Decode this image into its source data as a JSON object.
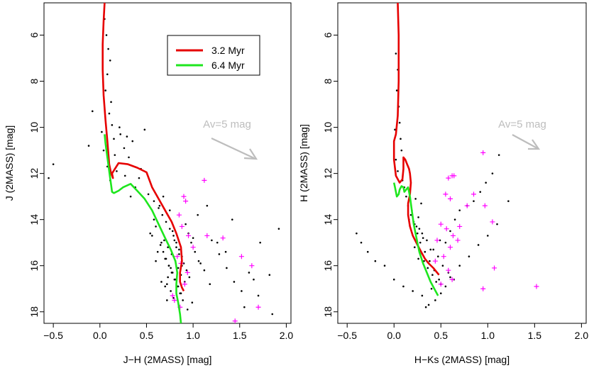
{
  "chart_data": [
    {
      "type": "scatter",
      "xlabel": "J−H (2MASS) [mag]",
      "ylabel": "J (2MASS) [mag]",
      "xlim": [
        -0.6,
        2.05
      ],
      "ylim": [
        18.5,
        4.6
      ],
      "y_inverted": true,
      "xticks": [
        -0.5,
        0.0,
        0.5,
        1.0,
        1.5,
        2.0
      ],
      "xtick_labels": [
        "−0.5",
        "0.0",
        "0.5",
        "1.0",
        "1.5",
        "2.0"
      ],
      "yticks": [
        6,
        8,
        10,
        12,
        14,
        16,
        18
      ],
      "ytick_labels": [
        "6",
        "8",
        "10",
        "12",
        "14",
        "16",
        "18"
      ],
      "legend": {
        "placement": "top-center",
        "entries": [
          {
            "label": "3.2 Myr",
            "color": "#e60000"
          },
          {
            "label": "6.4 Myr",
            "color": "#1ee61e"
          }
        ]
      },
      "annotation": {
        "text": "Av=5 mag",
        "color": "#bdbdbd",
        "at": [
          1.55,
          9.85
        ],
        "arrow_from": [
          1.35,
          10.35
        ],
        "arrow_to": [
          1.75,
          11.3
        ]
      },
      "series": [
        {
          "name": "3.2 Myr",
          "kind": "line",
          "color": "#e60000",
          "x": [
            0.05,
            0.04,
            0.03,
            0.03,
            0.04,
            0.06,
            0.08,
            0.09,
            0.1,
            0.12,
            0.14,
            0.13,
            0.2,
            0.3,
            0.4,
            0.5,
            0.56,
            0.63,
            0.7,
            0.77,
            0.82,
            0.87,
            0.88,
            0.86,
            0.86,
            0.88,
            0.9
          ],
          "y": [
            4.6,
            5.4,
            6.4,
            7.5,
            8.6,
            9.7,
            10.6,
            11.1,
            11.6,
            12.0,
            12.2,
            12.0,
            11.55,
            11.6,
            11.75,
            11.95,
            12.6,
            13.1,
            13.6,
            14.1,
            14.6,
            15.2,
            15.8,
            16.3,
            16.7,
            16.95,
            17.1
          ]
        },
        {
          "name": "6.4 Myr",
          "kind": "line",
          "color": "#1ee61e",
          "x": [
            0.05,
            0.06,
            0.07,
            0.08,
            0.09,
            0.1,
            0.11,
            0.12,
            0.13,
            0.15,
            0.2,
            0.25,
            0.33,
            0.4,
            0.48,
            0.56,
            0.63,
            0.7,
            0.76,
            0.81,
            0.83,
            0.82,
            0.82,
            0.84,
            0.86,
            0.87
          ],
          "y": [
            10.3,
            10.7,
            11.0,
            11.3,
            11.6,
            11.9,
            12.2,
            12.5,
            12.8,
            12.85,
            12.75,
            12.6,
            12.45,
            12.75,
            13.1,
            13.6,
            14.2,
            14.8,
            15.3,
            15.8,
            16.3,
            16.8,
            17.2,
            17.6,
            18.1,
            18.5
          ]
        },
        {
          "name": "",
          "kind": "points",
          "marker": "dot",
          "color": "#000000",
          "x": [
            0.05,
            0.07,
            0.09,
            0.11,
            0.08,
            0.06,
            0.12,
            0.1,
            0.13,
            0.15,
            0.04,
            0.08,
            0.11,
            -0.5,
            -0.55,
            -0.08,
            0.02,
            -0.12,
            0.22,
            0.35,
            0.26,
            0.31,
            0.44,
            0.42,
            0.38,
            0.33,
            0.27,
            0.18,
            0.16,
            0.21,
            0.29,
            0.48,
            0.52,
            0.58,
            0.63,
            0.67,
            0.71,
            0.75,
            0.79,
            0.82,
            0.85,
            0.88,
            0.9,
            0.93,
            0.96,
            0.69,
            0.73,
            0.77,
            0.81,
            0.84,
            0.87,
            0.66,
            0.62,
            0.7,
            0.74,
            0.78,
            0.8,
            0.83,
            0.86,
            0.89,
            0.72,
            0.76,
            0.79,
            0.92,
            0.95,
            0.98,
            1.02,
            1.06,
            1.12,
            1.2,
            1.28,
            1.36,
            1.44,
            1.52,
            1.6,
            1.72,
            1.82,
            1.92,
            1.85,
            1.7,
            1.55,
            1.15,
            1.05,
            0.99,
            0.94,
            0.6,
            0.56,
            0.65,
            0.68,
            0.71,
            0.74,
            0.77,
            0.81,
            0.84,
            0.87,
            0.82,
            0.79,
            0.76,
            0.73,
            0.7,
            0.78,
            0.8,
            0.85,
            0.88,
            0.91,
            0.75,
            0.68,
            0.64,
            0.58,
            0.54,
            0.6,
            0.66,
            0.72,
            1.0,
            1.08,
            1.18,
            1.26,
            1.35,
            1.42,
            1.65
          ],
          "y": [
            5.3,
            6.0,
            6.6,
            7.1,
            7.7,
            8.4,
            8.9,
            9.4,
            9.9,
            10.5,
            11.0,
            11.7,
            12.3,
            11.6,
            12.2,
            9.3,
            10.2,
            10.8,
            10.3,
            10.6,
            10.9,
            11.3,
            11.8,
            12.2,
            12.6,
            13.0,
            12.1,
            11.9,
            11.2,
            10.0,
            10.4,
            10.1,
            12.9,
            13.2,
            13.5,
            13.8,
            14.1,
            14.4,
            14.7,
            15.0,
            15.3,
            15.6,
            15.9,
            16.2,
            16.5,
            14.9,
            15.2,
            15.5,
            15.8,
            16.1,
            16.4,
            15.0,
            15.4,
            15.7,
            16.0,
            16.3,
            16.6,
            16.9,
            17.2,
            17.5,
            16.8,
            17.1,
            17.4,
            14.2,
            14.6,
            15.0,
            15.4,
            15.8,
            16.2,
            14.9,
            15.5,
            16.1,
            16.7,
            17.1,
            16.3,
            15.0,
            16.4,
            14.4,
            18.1,
            17.3,
            17.8,
            13.4,
            13.8,
            17.6,
            17.9,
            14.3,
            14.7,
            15.1,
            15.4,
            15.7,
            16.0,
            16.3,
            16.6,
            16.9,
            17.2,
            15.2,
            15.6,
            16.1,
            16.5,
            16.9,
            14.5,
            14.9,
            15.5,
            16.0,
            16.7,
            13.6,
            13.0,
            13.4,
            14.0,
            14.6,
            15.8,
            16.7,
            17.5,
            14.8,
            15.9,
            16.8,
            15.0,
            15.4,
            14.0,
            16.6
          ]
        },
        {
          "name": "",
          "kind": "points",
          "marker": "plus",
          "color": "#ff00ff",
          "x": [
            1.12,
            0.9,
            0.92,
            0.85,
            0.88,
            0.95,
            1.0,
            0.83,
            0.87,
            0.94,
            1.15,
            1.32,
            1.52,
            1.7,
            1.63,
            1.45,
            0.8,
            0.86,
            0.91,
            0.78
          ],
          "y": [
            12.3,
            13.0,
            13.2,
            13.8,
            14.3,
            14.7,
            15.2,
            15.6,
            15.9,
            16.3,
            14.7,
            14.8,
            15.6,
            17.8,
            16.0,
            18.4,
            17.5,
            17.8,
            16.8,
            17.3
          ]
        }
      ]
    },
    {
      "type": "scatter",
      "xlabel": "H−Ks (2MASS) [mag]",
      "ylabel": "H (2MASS) [mag]",
      "xlim": [
        -0.6,
        2.05
      ],
      "ylim": [
        18.5,
        4.6
      ],
      "y_inverted": true,
      "xticks": [
        -0.5,
        0.0,
        0.5,
        1.0,
        1.5,
        2.0
      ],
      "xtick_labels": [
        "−0.5",
        "0.0",
        "0.5",
        "1.0",
        "1.5",
        "2.0"
      ],
      "yticks": [
        6,
        8,
        10,
        12,
        14,
        16,
        18
      ],
      "ytick_labels": [
        "6",
        "8",
        "10",
        "12",
        "14",
        "16",
        "18"
      ],
      "annotation": {
        "text": "Av=5 mag",
        "color": "#bdbdbd",
        "at": [
          1.55,
          9.85
        ],
        "arrow_from": [
          1.35,
          10.35
        ],
        "arrow_to": [
          1.6,
          10.95
        ]
      },
      "series": [
        {
          "name": "3.2 Myr",
          "kind": "line",
          "color": "#e60000",
          "x": [
            0.04,
            0.05,
            0.05,
            0.04,
            0.02,
            0.0,
            0.0,
            0.02,
            0.06,
            0.09,
            0.1,
            0.1,
            0.12,
            0.14,
            0.16,
            0.17,
            0.18,
            0.17,
            0.15,
            0.15,
            0.17,
            0.2,
            0.25,
            0.29,
            0.33,
            0.37,
            0.42,
            0.46,
            0.48
          ],
          "y": [
            4.6,
            6.0,
            8.0,
            9.5,
            10.3,
            10.6,
            11.4,
            12.1,
            12.4,
            12.25,
            11.8,
            11.3,
            11.4,
            11.6,
            11.8,
            12.0,
            12.4,
            12.9,
            13.3,
            13.8,
            14.3,
            14.7,
            15.1,
            15.4,
            15.7,
            15.9,
            16.1,
            16.3,
            16.4
          ]
        },
        {
          "name": "6.4 Myr",
          "kind": "line",
          "color": "#1ee61e",
          "x": [
            0.0,
            0.01,
            0.02,
            0.03,
            0.05,
            0.06,
            0.08,
            0.1,
            0.11,
            0.13,
            0.15,
            0.17,
            0.19,
            0.21,
            0.24,
            0.27,
            0.31,
            0.35,
            0.39,
            0.43,
            0.47
          ],
          "y": [
            12.4,
            12.6,
            12.8,
            13.0,
            12.9,
            12.7,
            12.55,
            12.6,
            12.8,
            12.7,
            12.6,
            13.0,
            13.6,
            14.2,
            14.8,
            15.4,
            15.9,
            16.3,
            16.7,
            17.0,
            17.3
          ]
        },
        {
          "name": "",
          "kind": "points",
          "marker": "dot",
          "color": "#000000",
          "x": [
            0.02,
            0.04,
            0.03,
            0.05,
            0.06,
            0.01,
            0.07,
            0.08,
            0.02,
            0.04,
            0.09,
            0.11,
            0.13,
            0.15,
            0.18,
            0.22,
            0.25,
            0.28,
            0.33,
            0.38,
            0.43,
            0.48,
            0.55,
            0.6,
            0.65,
            0.7,
            0.78,
            0.85,
            0.92,
            0.98,
            1.05,
            1.12,
            1.22,
            -0.4,
            -0.35,
            -0.28,
            -0.2,
            -0.1,
            0.0,
            0.1,
            0.2,
            0.3,
            0.4,
            0.5,
            0.6,
            0.7,
            0.8,
            0.9,
            1.0,
            1.1,
            0.26,
            0.24,
            0.3,
            0.35,
            0.22,
            0.28,
            0.32,
            0.36,
            0.41,
            0.45,
            0.19,
            0.16,
            0.27,
            0.31,
            0.39,
            0.47,
            0.52,
            0.58,
            0.64,
            0.55,
            0.5,
            0.44,
            0.37,
            0.34,
            0.29,
            0.23,
            0.21,
            0.26,
            0.42,
            0.49
          ],
          "y": [
            6.8,
            7.5,
            8.4,
            9.1,
            9.8,
            10.1,
            10.5,
            11.0,
            11.4,
            11.9,
            12.3,
            12.6,
            13.0,
            13.4,
            13.8,
            14.2,
            14.6,
            15.0,
            15.4,
            15.8,
            16.2,
            16.6,
            15.0,
            14.5,
            14.0,
            13.6,
            13.4,
            13.2,
            12.8,
            12.4,
            12.0,
            11.2,
            13.2,
            14.6,
            15.0,
            15.4,
            15.8,
            16.0,
            16.6,
            16.9,
            17.1,
            17.3,
            17.0,
            16.8,
            16.5,
            16.0,
            15.6,
            15.1,
            14.7,
            14.2,
            13.9,
            14.3,
            14.6,
            14.9,
            15.2,
            15.5,
            15.8,
            16.1,
            16.4,
            16.7,
            13.6,
            14.0,
            14.4,
            14.8,
            15.3,
            15.6,
            16.0,
            16.3,
            16.6,
            16.9,
            17.2,
            17.5,
            17.7,
            17.8,
            13.3,
            13.1,
            14.1,
            15.7,
            15.3,
            14.9
          ]
        },
        {
          "name": "",
          "kind": "points",
          "marker": "plus",
          "color": "#ff00ff",
          "x": [
            0.95,
            0.62,
            0.58,
            0.64,
            0.55,
            0.6,
            0.78,
            0.85,
            0.97,
            1.05,
            0.7,
            0.68,
            0.5,
            0.46,
            0.56,
            0.63,
            0.6,
            0.53,
            0.44,
            0.58,
            0.62,
            1.07,
            1.52,
            0.95,
            0.5
          ],
          "y": [
            11.1,
            12.1,
            12.2,
            12.1,
            12.9,
            13.1,
            13.4,
            12.9,
            13.4,
            14.1,
            14.3,
            14.9,
            14.2,
            14.9,
            14.4,
            14.7,
            15.2,
            15.6,
            15.8,
            16.2,
            16.6,
            16.1,
            16.9,
            17.0,
            16.8
          ]
        }
      ]
    }
  ]
}
